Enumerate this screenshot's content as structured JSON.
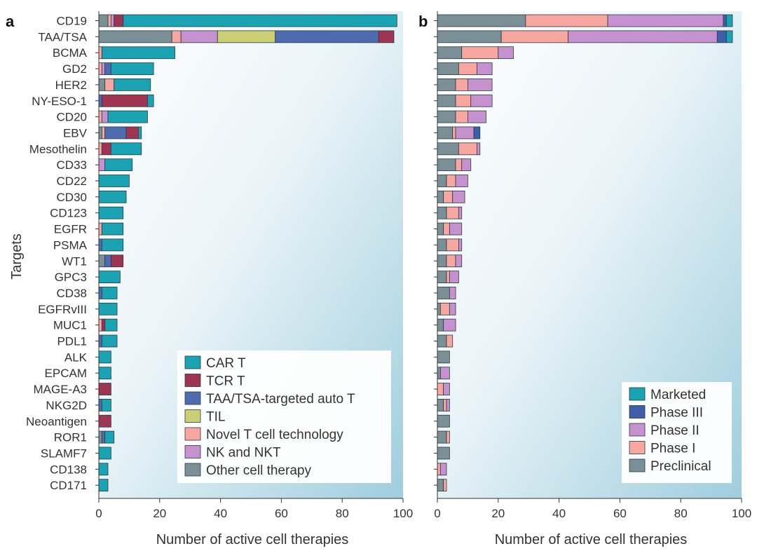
{
  "panel_labels": [
    "a",
    "b"
  ],
  "chart_data": [
    {
      "type": "bar",
      "stacked": true,
      "orientation": "horizontal",
      "panel": "a",
      "xlabel": "Number of active cell therapies",
      "ylabel": "Targets",
      "xlim": [
        0,
        100
      ],
      "xticks": [
        0,
        20,
        40,
        60,
        80,
        100
      ],
      "grid": false,
      "legend_position": "bottom-right",
      "categories": [
        "CD19",
        "TAA/TSA",
        "BCMA",
        "GD2",
        "HER2",
        "NY-ESO-1",
        "CD20",
        "EBV",
        "Mesothelin",
        "CD33",
        "CD22",
        "CD30",
        "CD123",
        "EGFR",
        "PSMA",
        "WT1",
        "GPC3",
        "CD38",
        "EGFRvIII",
        "MUC1",
        "PDL1",
        "ALK",
        "EPCAM",
        "MAGE-A3",
        "NKG2D",
        "Neoantigen",
        "ROR1",
        "SLAMF7",
        "CD138",
        "CD171"
      ],
      "series": [
        {
          "name": "Other cell therapy",
          "color": "#7b8f97",
          "values": [
            3,
            24,
            0,
            0,
            2,
            0,
            0,
            1,
            0,
            0,
            0,
            0,
            0,
            0,
            0,
            2,
            0,
            0,
            0,
            0,
            0,
            0,
            0,
            0,
            0,
            0,
            1,
            0,
            0,
            0
          ]
        },
        {
          "name": "Novel T cell technology",
          "color": "#f7a7a0",
          "values": [
            1,
            3,
            1,
            1,
            3,
            0,
            1,
            1,
            1,
            0,
            0,
            0,
            0,
            1,
            0,
            0,
            0,
            0,
            0,
            1,
            0,
            0,
            0,
            0,
            0,
            0,
            0,
            0,
            0,
            0
          ]
        },
        {
          "name": "NK and NKT",
          "color": "#c592cf",
          "values": [
            1,
            12,
            0,
            1,
            0,
            0,
            2,
            0,
            0,
            2,
            0,
            0,
            0,
            0,
            0,
            0,
            0,
            0,
            0,
            0,
            0,
            0,
            0,
            0,
            0,
            0,
            0,
            0,
            0,
            0
          ]
        },
        {
          "name": "TIL",
          "color": "#c9cf72",
          "values": [
            0,
            19,
            0,
            0,
            0,
            0,
            0,
            0,
            0,
            0,
            0,
            0,
            0,
            0,
            0,
            0,
            0,
            0,
            0,
            0,
            0,
            0,
            0,
            0,
            0,
            0,
            0,
            0,
            0,
            0
          ]
        },
        {
          "name": "TAA/TSA-targeted auto T",
          "color": "#4e6bb0",
          "values": [
            0,
            34,
            0,
            2,
            0,
            1,
            0,
            7,
            0,
            0,
            0,
            0,
            0,
            0,
            1,
            2,
            0,
            1,
            0,
            0,
            1,
            0,
            0,
            0,
            1,
            0,
            1,
            0,
            0,
            0
          ]
        },
        {
          "name": "TCR T",
          "color": "#9e3553",
          "values": [
            3,
            5,
            0,
            0,
            0,
            15,
            0,
            4,
            3,
            0,
            0,
            0,
            0,
            0,
            0,
            4,
            0,
            0,
            0,
            1,
            0,
            0,
            0,
            4,
            0,
            4,
            0,
            0,
            0,
            0
          ]
        },
        {
          "name": "CAR T",
          "color": "#1aa3b3",
          "values": [
            90,
            0,
            24,
            14,
            12,
            2,
            13,
            1,
            10,
            9,
            10,
            9,
            8,
            7,
            7,
            0,
            7,
            5,
            6,
            4,
            5,
            4,
            4,
            0,
            3,
            0,
            3,
            4,
            3,
            3
          ]
        }
      ]
    },
    {
      "type": "bar",
      "stacked": true,
      "orientation": "horizontal",
      "panel": "b",
      "xlabel": "Number of active cell therapies",
      "xlim": [
        0,
        100
      ],
      "xticks": [
        0,
        20,
        40,
        60,
        80,
        100
      ],
      "grid": false,
      "legend_position": "bottom-right",
      "categories": [
        "CD19",
        "TAA/TSA",
        "BCMA",
        "GD2",
        "HER2",
        "NY-ESO-1",
        "CD20",
        "EBV",
        "Mesothelin",
        "CD33",
        "CD22",
        "CD30",
        "CD123",
        "EGFR",
        "PSMA",
        "WT1",
        "GPC3",
        "CD38",
        "EGFRvIII",
        "MUC1",
        "PDL1",
        "ALK",
        "EPCAM",
        "MAGE-A3",
        "NKG2D",
        "Neoantigen",
        "ROR1",
        "SLAMF7",
        "CD138",
        "CD171"
      ],
      "series": [
        {
          "name": "Preclinical",
          "color": "#7b8f97",
          "values": [
            29,
            21,
            8,
            7,
            6,
            6,
            6,
            5,
            7,
            6,
            3,
            2,
            3,
            2,
            3,
            3,
            3,
            4,
            1,
            2,
            3,
            4,
            1,
            0,
            2,
            4,
            3,
            4,
            0,
            2
          ]
        },
        {
          "name": "Phase I",
          "color": "#f7a7a0",
          "values": [
            27,
            22,
            12,
            6,
            4,
            5,
            4,
            1,
            6,
            2,
            3,
            3,
            4,
            2,
            4,
            3,
            1,
            0,
            3,
            0,
            2,
            0,
            0,
            2,
            1,
            0,
            1,
            0,
            1,
            1
          ]
        },
        {
          "name": "Phase II",
          "color": "#c592cf",
          "values": [
            38,
            49,
            5,
            5,
            8,
            7,
            6,
            6,
            1,
            3,
            4,
            4,
            1,
            4,
            1,
            2,
            3,
            2,
            2,
            4,
            0,
            0,
            3,
            2,
            1,
            0,
            0,
            0,
            2,
            0
          ]
        },
        {
          "name": "Phase III",
          "color": "#3f5ea8",
          "values": [
            1,
            3,
            0,
            0,
            0,
            0,
            0,
            2,
            0,
            0,
            0,
            0,
            0,
            0,
            0,
            0,
            0,
            0,
            0,
            0,
            0,
            0,
            0,
            0,
            0,
            0,
            0,
            0,
            0,
            0
          ]
        },
        {
          "name": "Marketed",
          "color": "#1aa3b3",
          "values": [
            2,
            2,
            0,
            0,
            0,
            0,
            0,
            0,
            0,
            0,
            0,
            0,
            0,
            0,
            0,
            0,
            0,
            0,
            0,
            0,
            0,
            0,
            0,
            0,
            0,
            0,
            0,
            0,
            0,
            0
          ]
        }
      ]
    }
  ],
  "legend_a": [
    "CAR T",
    "TCR T",
    "TAA/TSA-targeted auto T",
    "TIL",
    "Novel T cell technology",
    "NK and NKT",
    "Other cell therapy"
  ],
  "legend_b": [
    "Marketed",
    "Phase III",
    "Phase II",
    "Phase I",
    "Preclinical"
  ]
}
